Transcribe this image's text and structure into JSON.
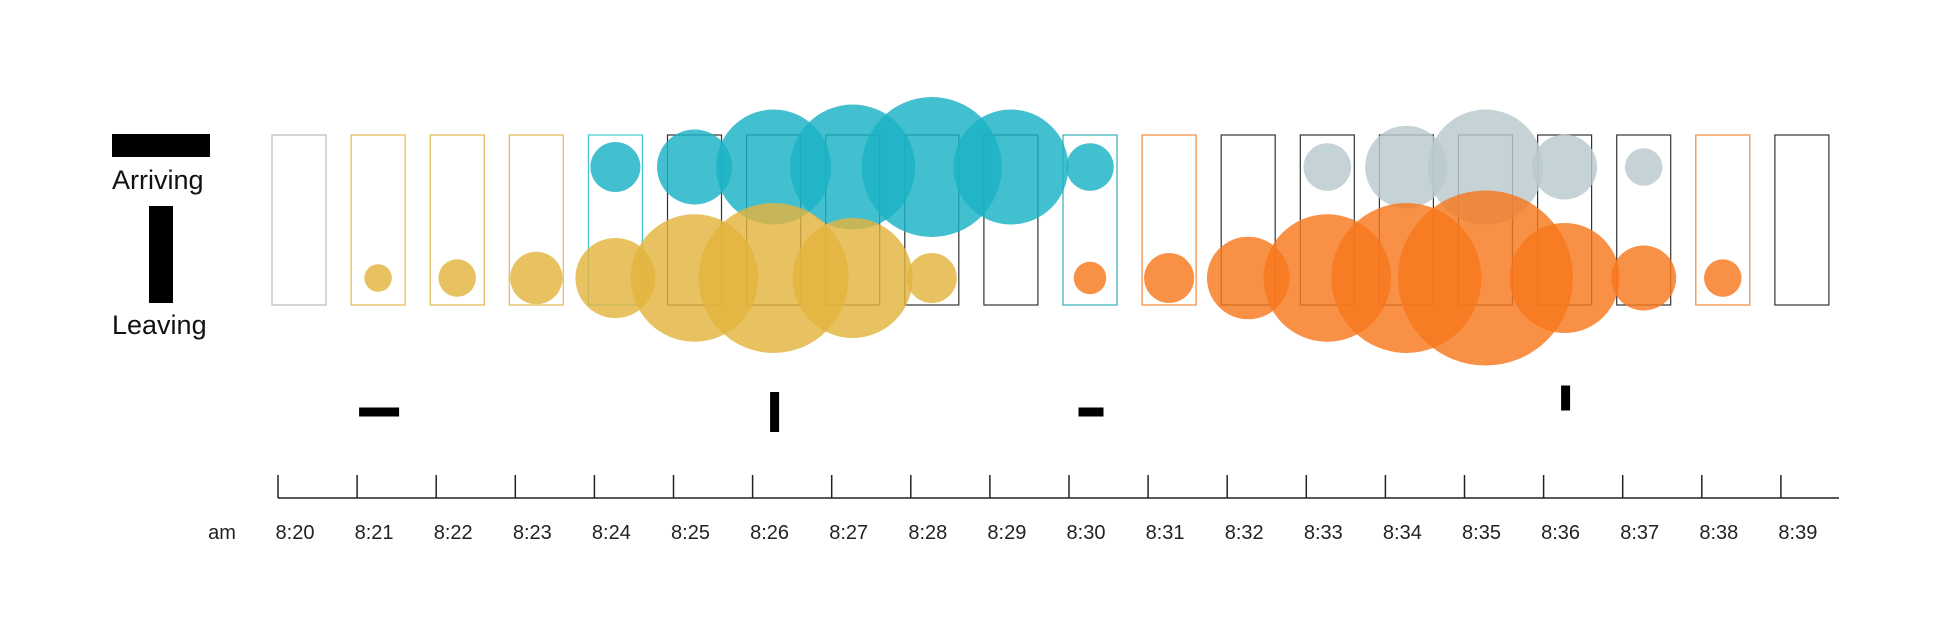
{
  "chart_data": {
    "type": "scatter",
    "legend": {
      "arriving_label": "Arriving",
      "leaving_label": "Leaving"
    },
    "x_prefix": "am",
    "categories": [
      "8:20",
      "8:21",
      "8:22",
      "8:23",
      "8:24",
      "8:25",
      "8:26",
      "8:27",
      "8:28",
      "8:29",
      "8:30",
      "8:31",
      "8:32",
      "8:33",
      "8:34",
      "8:35",
      "8:36",
      "8:37",
      "8:38",
      "8:39"
    ],
    "box_colors": [
      "#bbbbbb",
      "#e2b94c",
      "#e2b94c",
      "#e2b94c",
      "#47c7d1",
      "#333333",
      "#333333",
      "#333333",
      "#333333",
      "#333333",
      "#33aeb8",
      "#f08a3c",
      "#333333",
      "#333333",
      "#333333",
      "#333333",
      "#333333",
      "#333333",
      "#f08a3c",
      "#333333"
    ],
    "series": [
      {
        "role": "arriving",
        "groups": [
          {
            "color": "#1ab2c4",
            "points": [
              {
                "x": "8:24",
                "value": 20
              },
              {
                "x": "8:25",
                "value": 30
              },
              {
                "x": "8:26",
                "value": 46
              },
              {
                "x": "8:27",
                "value": 50
              },
              {
                "x": "8:28",
                "value": 56
              },
              {
                "x": "8:29",
                "value": 46
              },
              {
                "x": "8:30",
                "value": 19
              }
            ]
          },
          {
            "color": "#b9c9cd",
            "points": [
              {
                "x": "8:33",
                "value": 19
              },
              {
                "x": "8:34",
                "value": 33
              },
              {
                "x": "8:35",
                "value": 46
              },
              {
                "x": "8:36",
                "value": 26
              },
              {
                "x": "8:37",
                "value": 15
              }
            ]
          }
        ]
      },
      {
        "role": "leaving",
        "groups": [
          {
            "color": "#e3b33e",
            "points": [
              {
                "x": "8:21",
                "value": 11
              },
              {
                "x": "8:22",
                "value": 15
              },
              {
                "x": "8:23",
                "value": 21
              },
              {
                "x": "8:24",
                "value": 32
              },
              {
                "x": "8:25",
                "value": 51
              },
              {
                "x": "8:26",
                "value": 60
              },
              {
                "x": "8:27",
                "value": 48
              },
              {
                "x": "8:28",
                "value": 20
              }
            ]
          },
          {
            "color": "#f6781d",
            "points": [
              {
                "x": "8:30",
                "value": 13
              },
              {
                "x": "8:31",
                "value": 20
              },
              {
                "x": "8:32",
                "value": 33
              },
              {
                "x": "8:33",
                "value": 51
              },
              {
                "x": "8:34",
                "value": 60
              },
              {
                "x": "8:35",
                "value": 70
              },
              {
                "x": "8:36",
                "value": 44
              },
              {
                "x": "8:37",
                "value": 26
              },
              {
                "x": "8:38",
                "value": 15
              }
            ]
          }
        ]
      }
    ],
    "markers": [
      {
        "x": "8:21",
        "orientation": "horizontal",
        "size": 4
      },
      {
        "x": "8:26",
        "orientation": "vertical",
        "size": 4
      },
      {
        "x": "8:30",
        "orientation": "horizontal",
        "size": 2.5
      },
      {
        "x": "8:36",
        "orientation": "vertical",
        "size": 2.5
      }
    ]
  }
}
